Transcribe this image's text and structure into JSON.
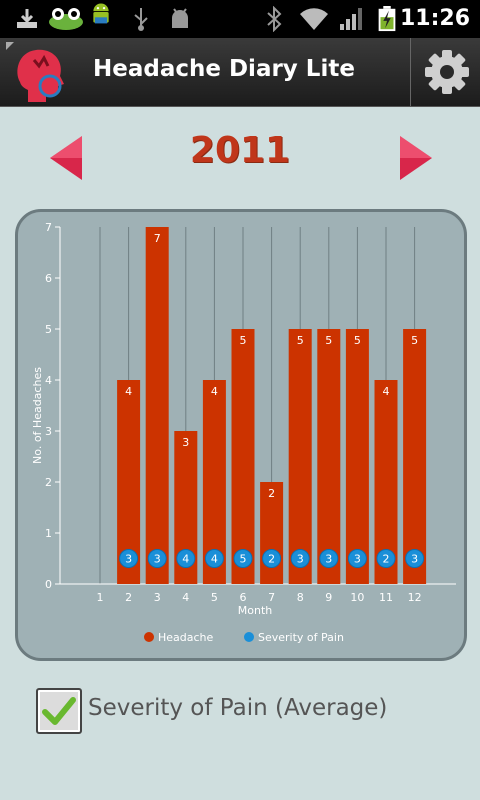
{
  "status_bar": {
    "time": "11:26",
    "icons": [
      "download-icon",
      "frog-icon",
      "android-icon",
      "usb-icon",
      "debug-icon",
      "bluetooth-icon",
      "wifi-icon",
      "signal-icon",
      "battery-charging-icon"
    ]
  },
  "app": {
    "title": "Headache Diary Lite",
    "icon": "head-icon",
    "settings_icon": "gear-icon"
  },
  "year_nav": {
    "year": "2011",
    "prev_icon": "left-arrow-icon",
    "next_icon": "right-arrow-icon"
  },
  "chart_data": {
    "type": "bar",
    "categories": [
      "1",
      "2",
      "3",
      "4",
      "5",
      "6",
      "7",
      "8",
      "9",
      "10",
      "11",
      "12"
    ],
    "series": [
      {
        "name": "Headache",
        "type": "bar",
        "color": "#cc3300",
        "values": [
          0,
          4,
          7,
          3,
          4,
          5,
          2,
          5,
          5,
          5,
          4,
          5
        ]
      },
      {
        "name": "Severity of Pain",
        "type": "point",
        "color": "#1a8fd8",
        "values": [
          null,
          3,
          3,
          4,
          4,
          5,
          2,
          3,
          3,
          3,
          2,
          3
        ]
      }
    ],
    "xlabel": "Month",
    "ylabel": "No. of Headaches",
    "ylim": [
      0,
      7
    ],
    "yticks": [
      "0",
      "1",
      "2",
      "3",
      "4",
      "5",
      "6",
      "7"
    ],
    "grid": "vertical",
    "legend_position": "bottom"
  },
  "severity_toggle": {
    "checked": true,
    "label": "Severity of Pain (Average)"
  }
}
